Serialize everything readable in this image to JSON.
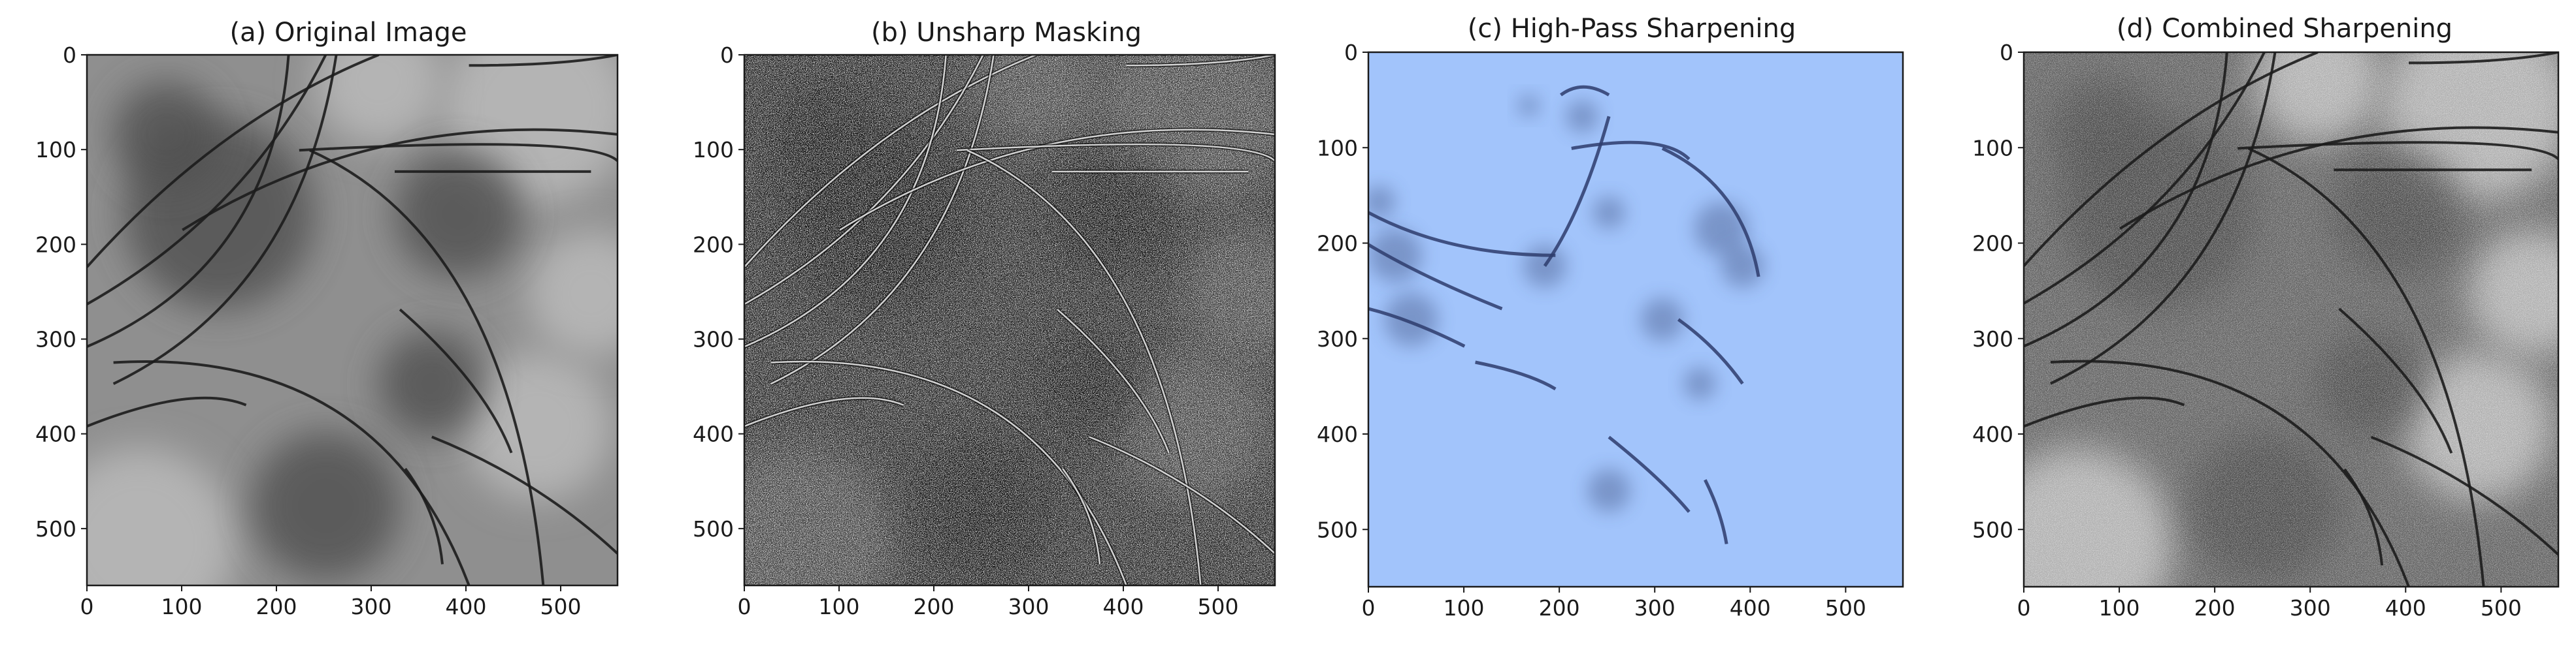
{
  "figure": {
    "panels": [
      {
        "id": "a",
        "title": "(a) Original Image",
        "style": "original",
        "x_ticks": [
          "0",
          "100",
          "200",
          "300",
          "400",
          "500"
        ],
        "y_ticks": [
          "0",
          "100",
          "200",
          "300",
          "400",
          "500"
        ]
      },
      {
        "id": "b",
        "title": "(b) Unsharp Masking",
        "style": "unsharp",
        "x_ticks": [
          "0",
          "100",
          "200",
          "300",
          "400",
          "500"
        ],
        "y_ticks": [
          "0",
          "100",
          "200",
          "300",
          "400",
          "500"
        ]
      },
      {
        "id": "c",
        "title": "(c) High-Pass Sharpening",
        "style": "highpass",
        "x_ticks": [
          "0",
          "100",
          "200",
          "300",
          "400",
          "500"
        ],
        "y_ticks": [
          "0",
          "100",
          "200",
          "300",
          "400",
          "500"
        ]
      },
      {
        "id": "d",
        "title": "(d) Combined Sharpening",
        "style": "combined",
        "x_ticks": [
          "0",
          "100",
          "200",
          "300",
          "400",
          "500"
        ],
        "y_ticks": [
          "0",
          "100",
          "200",
          "300",
          "400",
          "500"
        ]
      }
    ],
    "image_extent": [
      0,
      560
    ],
    "colors": {
      "axis": "#1a1a1a",
      "highpass_background": "#a2c4fb",
      "highpass_marks": "#2e3c6c",
      "hair_dark": "#1c1c1c",
      "hair_light": "#e6e6e6"
    }
  }
}
